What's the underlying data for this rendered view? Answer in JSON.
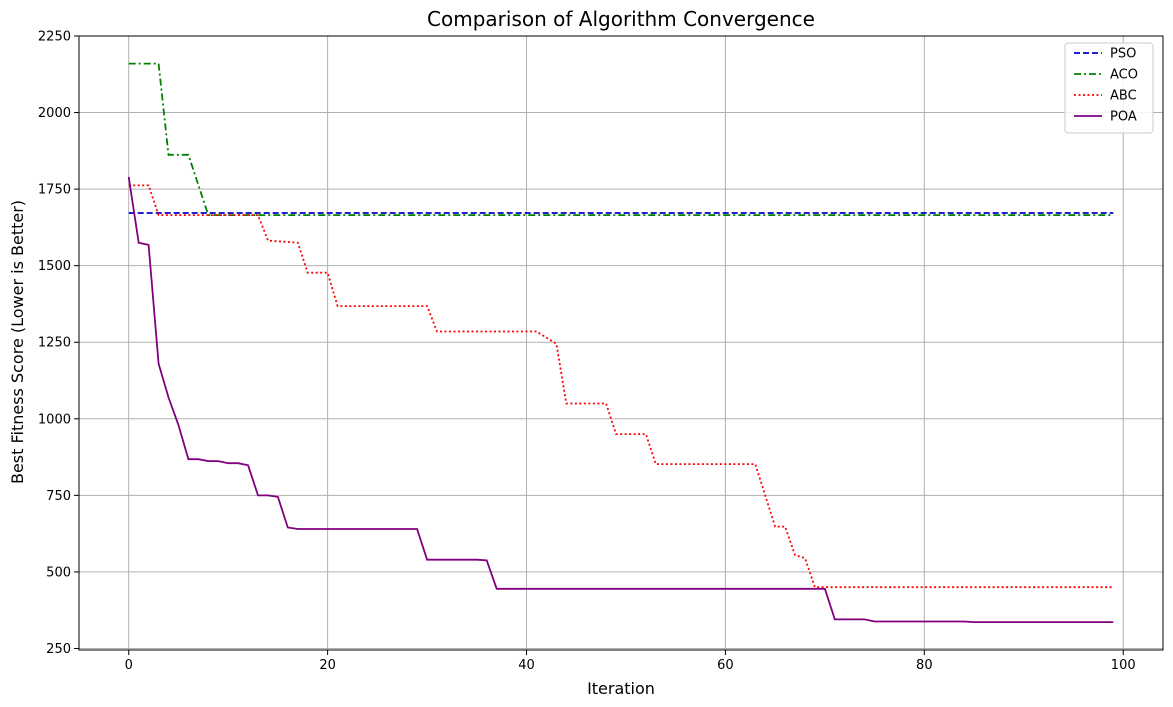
{
  "chart_data": {
    "type": "line",
    "title": "Comparison of Algorithm Convergence",
    "xlabel": "Iteration",
    "ylabel": "Best Fitness Score (Lower is Better)",
    "xlim": [
      -5,
      104
    ],
    "ylim": [
      245,
      2250
    ],
    "xticks": [
      0,
      20,
      40,
      60,
      80,
      100
    ],
    "yticks": [
      250,
      500,
      750,
      1000,
      1250,
      1500,
      1750,
      2000,
      2250
    ],
    "grid": true,
    "legend_position": "top-right",
    "series": [
      {
        "name": "PSO",
        "color": "#0000cc",
        "dash": "dashed",
        "points": [
          [
            0,
            1672
          ],
          [
            99,
            1672
          ]
        ]
      },
      {
        "name": "ACO",
        "color": "#008000",
        "dash": "dashdot",
        "points": [
          [
            0,
            2160
          ],
          [
            3,
            2160
          ],
          [
            4,
            1862
          ],
          [
            6,
            1862
          ],
          [
            8,
            1665
          ],
          [
            99,
            1665
          ]
        ]
      },
      {
        "name": "ABC",
        "color": "#ff0000",
        "dash": "dotted",
        "points": [
          [
            0,
            1762
          ],
          [
            2,
            1762
          ],
          [
            3,
            1665
          ],
          [
            13,
            1665
          ],
          [
            14,
            1582
          ],
          [
            17,
            1575
          ],
          [
            18,
            1477
          ],
          [
            20,
            1477
          ],
          [
            21,
            1368
          ],
          [
            30,
            1368
          ],
          [
            31,
            1285
          ],
          [
            41,
            1285
          ],
          [
            43,
            1245
          ],
          [
            44,
            1050
          ],
          [
            48,
            1050
          ],
          [
            49,
            950
          ],
          [
            52,
            950
          ],
          [
            53,
            852
          ],
          [
            63,
            852
          ],
          [
            65,
            648
          ],
          [
            66,
            648
          ],
          [
            67,
            555
          ],
          [
            68,
            545
          ],
          [
            69,
            450
          ],
          [
            99,
            450
          ]
        ]
      },
      {
        "name": "POA",
        "color": "#800080",
        "dash": "solid",
        "points": [
          [
            0,
            1790
          ],
          [
            1,
            1575
          ],
          [
            2,
            1568
          ],
          [
            3,
            1180
          ],
          [
            4,
            1070
          ],
          [
            5,
            980
          ],
          [
            6,
            868
          ],
          [
            7,
            868
          ],
          [
            8,
            862
          ],
          [
            9,
            862
          ],
          [
            10,
            855
          ],
          [
            11,
            855
          ],
          [
            12,
            848
          ],
          [
            13,
            750
          ],
          [
            14,
            750
          ],
          [
            15,
            745
          ],
          [
            16,
            645
          ],
          [
            17,
            640
          ],
          [
            29,
            640
          ],
          [
            30,
            540
          ],
          [
            35,
            540
          ],
          [
            36,
            538
          ],
          [
            37,
            445
          ],
          [
            70,
            445
          ],
          [
            71,
            345
          ],
          [
            74,
            345
          ],
          [
            75,
            338
          ],
          [
            84,
            338
          ],
          [
            85,
            336
          ],
          [
            99,
            336
          ]
        ]
      }
    ]
  }
}
